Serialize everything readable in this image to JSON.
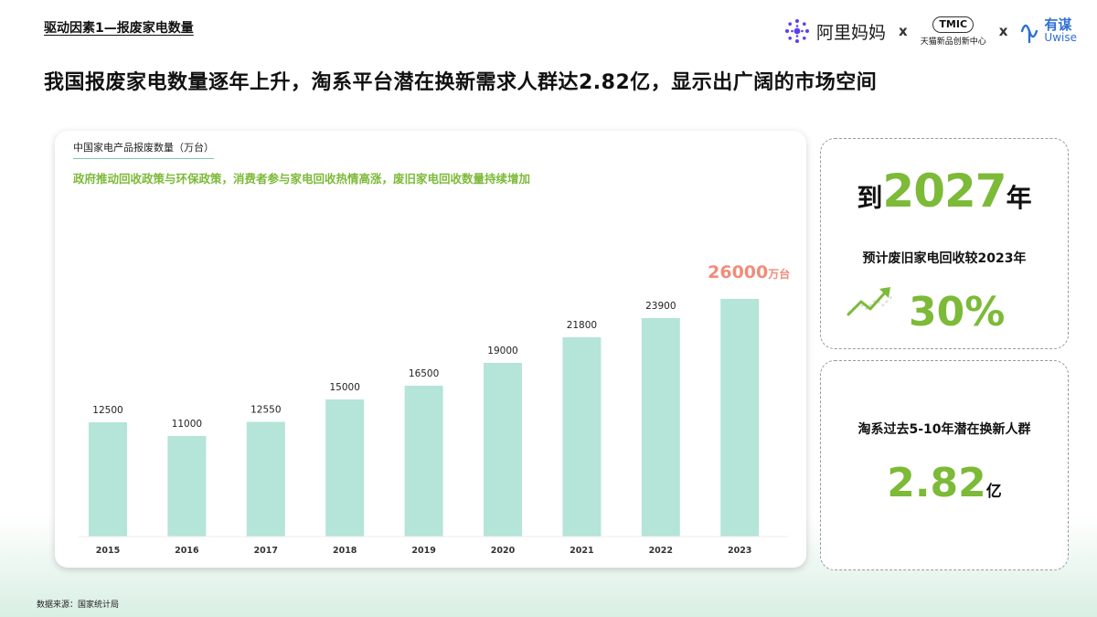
{
  "header": {
    "section_title": "驱动因素1—报废家电数量",
    "headline": "我国报废家电数量逐年上升，淘系平台潜在换新需求人群达2.82亿，显示出广阔的市场空间",
    "logos": {
      "alimama": "阿里妈妈",
      "separator": "x",
      "tmic_badge": "TMIC",
      "tmic_sub": "天猫新品创新中心",
      "uwise_cn": "有谋",
      "uwise_en": "Uwise"
    }
  },
  "chart_data": {
    "type": "bar",
    "title": "中国家电产品报废数量（万台）",
    "subtitle": "政府推动回收政策与环保政策，消费者参与家电回收热情高涨，废旧家电回收数量持续增加",
    "categories": [
      "2015",
      "2016",
      "2017",
      "2018",
      "2019",
      "2020",
      "2021",
      "2022",
      "2023"
    ],
    "values": [
      12500,
      11000,
      12550,
      15000,
      16500,
      19000,
      21800,
      23900,
      26000
    ],
    "data_labels": [
      "12500",
      "11000",
      "12550",
      "15000",
      "16500",
      "19000",
      "21800",
      "23900",
      "26000"
    ],
    "highlight_index": 8,
    "highlight_unit": "万台",
    "ylim": [
      0,
      26000
    ],
    "grid": false,
    "legend": "none",
    "bar_color": "#b5e4d8",
    "highlight_label_color": "#f08c7a"
  },
  "cards": {
    "forecast": {
      "prefix": "到",
      "year": "2027",
      "suffix": "年",
      "description": "预计废旧家电回收较2023年",
      "percent": "30%"
    },
    "users": {
      "description": "淘系过去5-10年潜在换新人群",
      "value": "2.82",
      "unit": "亿"
    }
  },
  "colors": {
    "accent_green": "#7cba38",
    "title_underline": "#7fc7a8"
  },
  "footer": {
    "source": "数据来源：国家统计局"
  }
}
